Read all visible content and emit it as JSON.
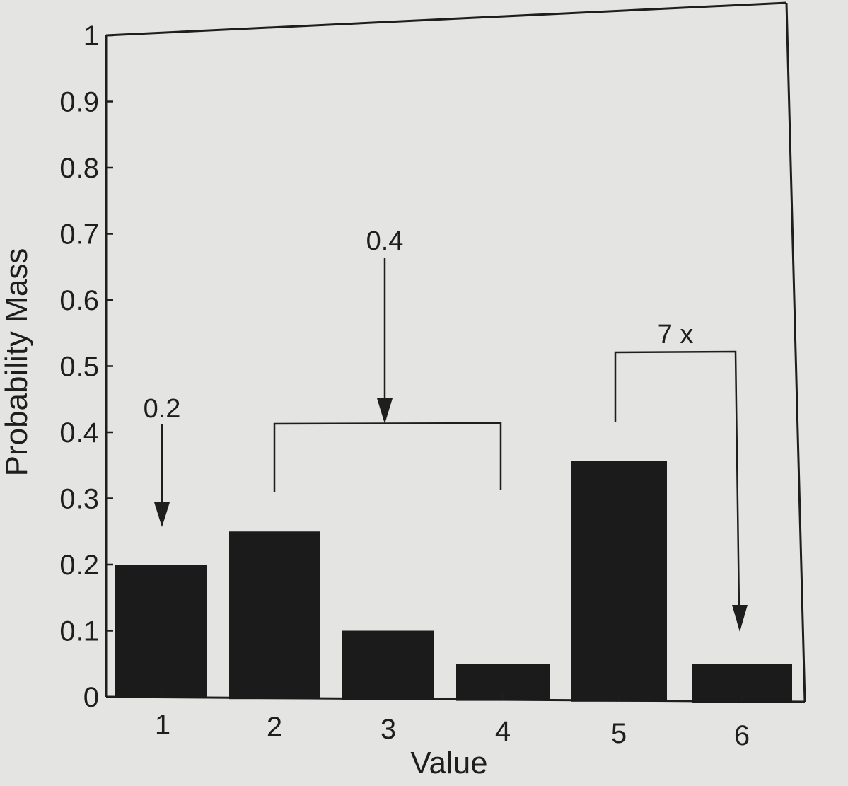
{
  "chart_data": {
    "type": "bar",
    "categories": [
      "1",
      "2",
      "3",
      "4",
      "5",
      "6"
    ],
    "values": [
      0.2,
      0.25,
      0.1,
      0.05,
      0.357,
      0.05
    ],
    "xlabel": "Value",
    "ylabel": "Probability Mass",
    "ylim": [
      0,
      1
    ],
    "yticks": [
      "0",
      "0.1",
      "0.2",
      "0.3",
      "0.4",
      "0.5",
      "0.6",
      "0.7",
      "0.8",
      "0.9",
      "1"
    ],
    "grid": false,
    "bar_color": "#1b1b1b",
    "annotations": [
      {
        "text": "0.2",
        "target": "1"
      },
      {
        "text": "0.4",
        "target": [
          "2",
          "3",
          "4"
        ]
      },
      {
        "text": "7 x",
        "from": "5",
        "to": "6"
      }
    ]
  }
}
